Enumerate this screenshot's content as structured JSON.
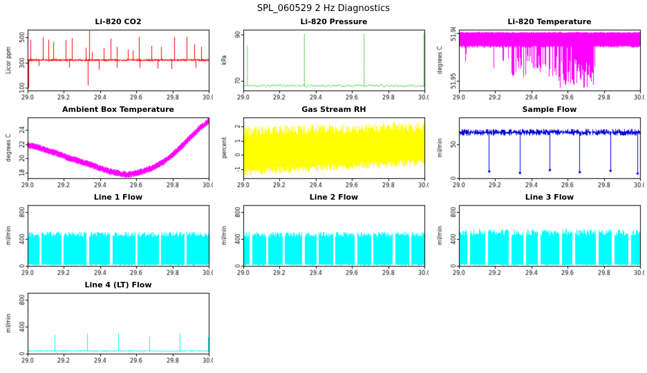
{
  "page_title": "SPL_060529  2 Hz Diagnostics",
  "chart_data": [
    {
      "id": "li820-co2",
      "type": "line",
      "title": "Li-820 CO2",
      "ylabel": "Licor ppm",
      "color": "#ff0000",
      "xlim": [
        29.0,
        30.0
      ],
      "ylim": [
        80,
        560
      ],
      "xticks": [
        29.0,
        29.2,
        29.4,
        29.6,
        29.8,
        30.0
      ],
      "xtick_labels": [
        "29.0",
        "29.2",
        "29.4",
        "29.6",
        "29.8",
        "30.0"
      ],
      "yticks": [
        100,
        300,
        500
      ],
      "ytick_labels": [
        "100",
        "300",
        "500"
      ],
      "pattern": {
        "kind": "spiky",
        "baseline": 320,
        "noise": 8,
        "up_spike_period": 0.05,
        "up_spike_min": 380,
        "up_spike_max": 505,
        "down_spike_period": 0.12,
        "down_spike_min": 240,
        "down_spike_max": 275,
        "events": [
          {
            "x": 29.005,
            "y": 100
          },
          {
            "x": 29.332,
            "y": 118
          },
          {
            "x": 29.34,
            "y": 552
          }
        ]
      }
    },
    {
      "id": "li820-pressure",
      "type": "line",
      "title": "Li-820 Pressure",
      "ylabel": "kPa",
      "color": "#00bb00",
      "xlim": [
        29.0,
        30.0
      ],
      "ylim": [
        66,
        92
      ],
      "xticks": [
        29.0,
        29.2,
        29.4,
        29.6,
        29.8,
        30.0
      ],
      "xtick_labels": [
        "29.0",
        "29.2",
        "29.4",
        "29.6",
        "29.8",
        "30.0"
      ],
      "yticks": [
        70,
        90
      ],
      "ytick_labels": [
        "70",
        "90"
      ],
      "pattern": {
        "kind": "dotted_spikes",
        "baseline": 68.2,
        "noise": 0.4,
        "events": [
          {
            "x": 29.02,
            "y": 85
          },
          {
            "x": 29.335,
            "y": 90
          },
          {
            "x": 29.665,
            "y": 90
          },
          {
            "x": 29.995,
            "y": 90.5
          }
        ]
      }
    },
    {
      "id": "li820-temperature",
      "type": "line",
      "title": "Li-820 Temperature",
      "ylabel": "degrees C",
      "color": "#ff00ff",
      "xlim": [
        29.0,
        30.0
      ],
      "ylim": [
        51.944,
        51.982
      ],
      "xticks": [
        29.0,
        29.2,
        29.4,
        29.6,
        29.8,
        30.0
      ],
      "xtick_labels": [
        "29.0",
        "29.2",
        "29.4",
        "29.6",
        "29.8",
        "30.0"
      ],
      "yticks": [
        51.95,
        51.98
      ],
      "ytick_labels": [
        "51.95",
        "51.98"
      ],
      "pattern": {
        "kind": "band_drops",
        "band_top": 51.98,
        "band_bottom": 51.972,
        "segments": [
          {
            "x0": 29.03,
            "x1": 29.07,
            "low": 51.958,
            "density": 0.2
          },
          {
            "x0": 29.19,
            "x1": 29.27,
            "low": 51.955,
            "density": 0.35
          },
          {
            "x0": 29.27,
            "x1": 29.55,
            "low": 51.952,
            "density": 0.6
          },
          {
            "x0": 29.55,
            "x1": 29.75,
            "low": 51.945,
            "density": 0.9
          }
        ]
      }
    },
    {
      "id": "ambient-box-temperature",
      "type": "line",
      "title": "Ambient Box Temperature",
      "ylabel": "degrees C",
      "color": "#ff00ff",
      "xlim": [
        29.0,
        30.0
      ],
      "ylim": [
        17.2,
        25.8
      ],
      "xticks": [
        29.0,
        29.2,
        29.4,
        29.6,
        29.8,
        30.0
      ],
      "xtick_labels": [
        "29.0",
        "29.2",
        "29.4",
        "29.6",
        "29.8",
        "30.0"
      ],
      "yticks": [
        18,
        20,
        22,
        24
      ],
      "ytick_labels": [
        "18",
        "20",
        "22",
        "24"
      ],
      "pattern": {
        "kind": "noisy_curve",
        "noise": 0.45,
        "trend": [
          [
            29.0,
            21.9
          ],
          [
            29.05,
            21.6
          ],
          [
            29.1,
            21.2
          ],
          [
            29.15,
            20.8
          ],
          [
            29.2,
            20.3
          ],
          [
            29.25,
            19.9
          ],
          [
            29.3,
            19.5
          ],
          [
            29.35,
            19.1
          ],
          [
            29.4,
            18.6
          ],
          [
            29.45,
            18.2
          ],
          [
            29.5,
            17.9
          ],
          [
            29.55,
            17.7
          ],
          [
            29.6,
            17.9
          ],
          [
            29.65,
            18.3
          ],
          [
            29.7,
            18.8
          ],
          [
            29.75,
            19.5
          ],
          [
            29.8,
            20.5
          ],
          [
            29.85,
            21.7
          ],
          [
            29.9,
            23.0
          ],
          [
            29.95,
            24.3
          ],
          [
            30.0,
            25.3
          ]
        ]
      }
    },
    {
      "id": "gas-stream-rh",
      "type": "line",
      "title": "Gas Stream RH",
      "ylabel": "percent",
      "color": "#ffff00",
      "xlim": [
        29.0,
        30.0
      ],
      "ylim": [
        -1.6,
        2.6
      ],
      "xticks": [
        29.0,
        29.2,
        29.4,
        29.6,
        29.8,
        30.0
      ],
      "xtick_labels": [
        "29.0",
        "29.2",
        "29.4",
        "29.6",
        "29.8",
        "30.0"
      ],
      "yticks": [
        -1,
        0,
        1,
        2
      ],
      "ytick_labels": [
        "-1",
        "0",
        "1",
        "2"
      ],
      "pattern": {
        "kind": "noise_band",
        "bottom_start": -1.2,
        "bottom_end": -0.5,
        "top_start": 2.0,
        "top_end": 2.3
      }
    },
    {
      "id": "sample-flow",
      "type": "line",
      "title": "Sample Flow",
      "ylabel": "ml/min",
      "color": "#0000dd",
      "xlim": [
        29.0,
        30.0
      ],
      "ylim": [
        0,
        90
      ],
      "xticks": [
        29.0,
        29.2,
        29.4,
        29.6,
        29.8,
        30.0
      ],
      "xtick_labels": [
        "29.0",
        "29.2",
        "29.4",
        "29.6",
        "29.8",
        "30.0"
      ],
      "yticks": [
        0,
        50
      ],
      "ytick_labels": [
        "0",
        "50"
      ],
      "pattern": {
        "kind": "baseline_down_spikes",
        "baseline": 68,
        "noise": 5,
        "spikes": [
          {
            "x": 29.165,
            "y": 10
          },
          {
            "x": 29.335,
            "y": 8
          },
          {
            "x": 29.5,
            "y": 12
          },
          {
            "x": 29.665,
            "y": 9
          },
          {
            "x": 29.835,
            "y": 11
          },
          {
            "x": 29.985,
            "y": 7
          }
        ]
      }
    },
    {
      "id": "line1-flow",
      "type": "line",
      "title": "Line 1 Flow",
      "ylabel": "ml/min",
      "color": "#00ffff",
      "xlim": [
        29.0,
        30.0
      ],
      "ylim": [
        0,
        900
      ],
      "xticks": [
        29.0,
        29.2,
        29.4,
        29.6,
        29.8,
        30.0
      ],
      "xtick_labels": [
        "29.0",
        "29.2",
        "29.4",
        "29.6",
        "29.8",
        "30.0"
      ],
      "yticks": [
        0,
        400,
        800
      ],
      "ytick_labels": [
        "0",
        "400",
        "800"
      ],
      "pattern": {
        "kind": "dense_band",
        "low": 5,
        "top_min": 430,
        "top_max": 510,
        "gap_width": 0.012,
        "gaps": [
          29.07,
          29.19,
          29.33,
          29.46,
          29.6,
          29.73,
          29.87
        ]
      }
    },
    {
      "id": "line2-flow",
      "type": "line",
      "title": "Line 2 Flow",
      "ylabel": "ml/min",
      "color": "#00ffff",
      "xlim": [
        29.0,
        30.0
      ],
      "ylim": [
        0,
        900
      ],
      "xticks": [
        29.0,
        29.2,
        29.4,
        29.6,
        29.8,
        30.0
      ],
      "xtick_labels": [
        "29.0",
        "29.2",
        "29.4",
        "29.6",
        "29.8",
        "30.0"
      ],
      "yticks": [
        0,
        400,
        800
      ],
      "ytick_labels": [
        "0",
        "400",
        "800"
      ],
      "pattern": {
        "kind": "dense_band",
        "low": 5,
        "top_min": 430,
        "top_max": 510,
        "gap_width": 0.012,
        "gaps": [
          29.04,
          29.13,
          29.22,
          29.33,
          29.41,
          29.5,
          29.62,
          29.71,
          29.83,
          29.92
        ]
      }
    },
    {
      "id": "line3-flow",
      "type": "line",
      "title": "Line 3 Flow",
      "ylabel": "ml/min",
      "color": "#00ffff",
      "xlim": [
        29.0,
        30.0
      ],
      "ylim": [
        0,
        900
      ],
      "xticks": [
        29.0,
        29.2,
        29.4,
        29.6,
        29.8,
        30.0
      ],
      "xtick_labels": [
        "29.0",
        "29.2",
        "29.4",
        "29.6",
        "29.8",
        "30.0"
      ],
      "yticks": [
        0,
        400,
        800
      ],
      "ytick_labels": [
        "0",
        "400",
        "800"
      ],
      "pattern": {
        "kind": "dense_band",
        "low": 5,
        "top_min": 450,
        "top_max": 545,
        "gap_width": 0.015,
        "gaps": [
          29.05,
          29.15,
          29.28,
          29.36,
          29.44,
          29.56,
          29.63,
          29.76,
          29.85,
          29.94
        ]
      }
    },
    {
      "id": "line4-lt-flow",
      "type": "line",
      "title": "Line 4 (LT) Flow",
      "ylabel": "ml/min",
      "color": "#00ffff",
      "xlim": [
        29.0,
        30.0
      ],
      "ylim": [
        0,
        900
      ],
      "xticks": [
        29.0,
        29.2,
        29.4,
        29.6,
        29.8,
        30.0
      ],
      "xtick_labels": [
        "29.0",
        "29.2",
        "29.4",
        "29.6",
        "29.8",
        "30.0"
      ],
      "yticks": [
        0,
        400,
        800
      ],
      "ytick_labels": [
        "0",
        "400",
        "800"
      ],
      "pattern": {
        "kind": "flat_spikes",
        "baseline": 40,
        "noise": 8,
        "spikes": [
          {
            "x": 29.15,
            "y": 280
          },
          {
            "x": 29.33,
            "y": 300
          },
          {
            "x": 29.5,
            "y": 310
          },
          {
            "x": 29.67,
            "y": 250
          },
          {
            "x": 29.84,
            "y": 300
          },
          {
            "x": 29.995,
            "y": 240
          }
        ]
      }
    }
  ]
}
